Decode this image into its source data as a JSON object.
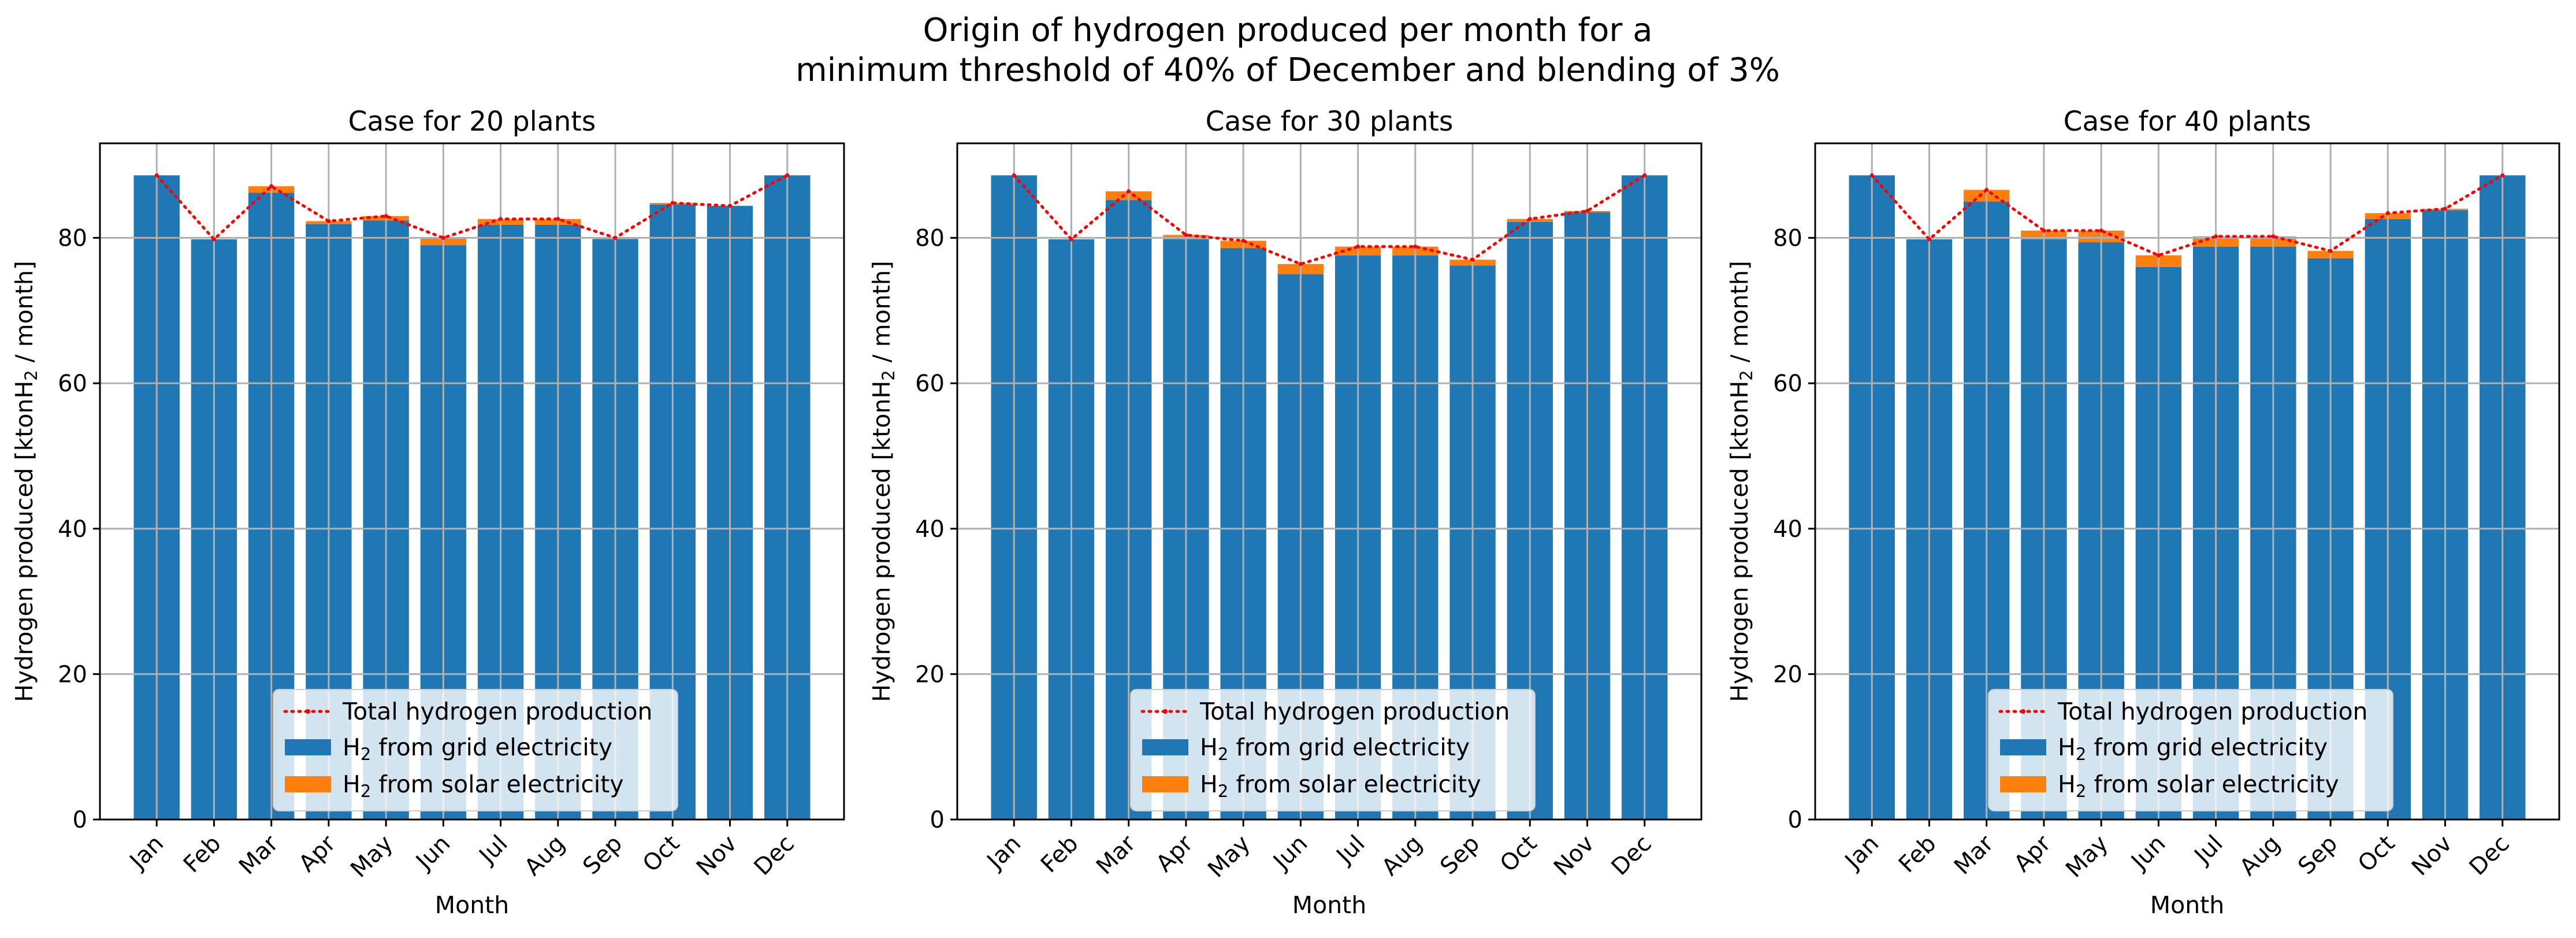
{
  "figure": {
    "title_line1": "Origin of hydrogen produced per month for a",
    "title_line2": "minimum threshold of 40% of December and blending of 3%"
  },
  "legend": {
    "total": "Total hydrogen production",
    "grid_prefix": "H",
    "grid_sub": "2",
    "grid_suffix": " from grid electricity",
    "solar_prefix": "H",
    "solar_sub": "2",
    "solar_suffix": " from solar electricity"
  },
  "colors": {
    "grid": "#1f77b4",
    "solar": "#ff7f0e",
    "total": "#ff0000",
    "gridline": "#b0b0b0"
  },
  "chart_data": [
    {
      "type": "bar",
      "stacked": true,
      "title": "Case for 20 plants",
      "xlabel": "Month",
      "ylabel": "Hydrogen produced [ktonH2 / month]",
      "ylim": [
        0,
        93
      ],
      "yticks": [
        0,
        20,
        40,
        60,
        80
      ],
      "grid": true,
      "legend_position": "lower center",
      "categories": [
        "Jan",
        "Feb",
        "Mar",
        "Apr",
        "May",
        "Jun",
        "Jul",
        "Aug",
        "Sep",
        "Oct",
        "Nov",
        "Dec"
      ],
      "series": [
        {
          "name": "H2 from grid electricity",
          "values": [
            88.6,
            79.8,
            86.2,
            81.9,
            82.4,
            79.0,
            81.8,
            81.8,
            79.8,
            84.6,
            84.4,
            88.6
          ]
        },
        {
          "name": "H2 from solar electricity",
          "values": [
            0.0,
            0.0,
            0.9,
            0.4,
            0.6,
            1.0,
            0.8,
            0.8,
            0.2,
            0.2,
            0.0,
            0.0
          ]
        }
      ],
      "line": {
        "name": "Total hydrogen production",
        "values": [
          88.6,
          79.8,
          87.1,
          82.3,
          83.0,
          80.0,
          82.6,
          82.6,
          80.0,
          84.8,
          84.4,
          88.6
        ]
      }
    },
    {
      "type": "bar",
      "stacked": true,
      "title": "Case for 30 plants",
      "xlabel": "Month",
      "ylabel": "Hydrogen produced [ktonH2 / month]",
      "ylim": [
        0,
        93
      ],
      "yticks": [
        0,
        20,
        40,
        60,
        80
      ],
      "grid": true,
      "legend_position": "lower center",
      "categories": [
        "Jan",
        "Feb",
        "Mar",
        "Apr",
        "May",
        "Jun",
        "Jul",
        "Aug",
        "Sep",
        "Oct",
        "Nov",
        "Dec"
      ],
      "series": [
        {
          "name": "H2 from grid electricity",
          "values": [
            88.6,
            79.8,
            85.2,
            79.8,
            78.6,
            75.0,
            77.6,
            77.6,
            76.2,
            82.2,
            83.5,
            88.6
          ]
        },
        {
          "name": "H2 from solar electricity",
          "values": [
            0.0,
            0.0,
            1.2,
            0.6,
            1.0,
            1.4,
            1.2,
            1.2,
            0.8,
            0.4,
            0.2,
            0.0
          ]
        }
      ],
      "line": {
        "name": "Total hydrogen production",
        "values": [
          88.6,
          79.8,
          86.4,
          80.4,
          79.6,
          76.4,
          78.8,
          78.8,
          77.0,
          82.6,
          83.7,
          88.6
        ]
      }
    },
    {
      "type": "bar",
      "stacked": true,
      "title": "Case for 40 plants",
      "xlabel": "Month",
      "ylabel": "Hydrogen produced [ktonH2 / month]",
      "ylim": [
        0,
        93
      ],
      "yticks": [
        0,
        20,
        40,
        60,
        80
      ],
      "grid": true,
      "legend_position": "lower center",
      "categories": [
        "Jan",
        "Feb",
        "Mar",
        "Apr",
        "May",
        "Jun",
        "Jul",
        "Aug",
        "Sep",
        "Oct",
        "Nov",
        "Dec"
      ],
      "series": [
        {
          "name": "H2 from grid electricity",
          "values": [
            88.6,
            79.8,
            85.0,
            79.8,
            79.4,
            76.0,
            78.8,
            78.8,
            77.2,
            82.6,
            83.8,
            88.6
          ]
        },
        {
          "name": "H2 from solar electricity",
          "values": [
            0.0,
            0.0,
            1.6,
            1.2,
            1.6,
            1.6,
            1.4,
            1.4,
            1.0,
            0.8,
            0.2,
            0.0
          ]
        }
      ],
      "line": {
        "name": "Total hydrogen production",
        "values": [
          88.6,
          79.8,
          86.6,
          81.0,
          81.0,
          77.6,
          80.2,
          80.2,
          78.2,
          83.4,
          84.0,
          88.6
        ]
      }
    }
  ]
}
